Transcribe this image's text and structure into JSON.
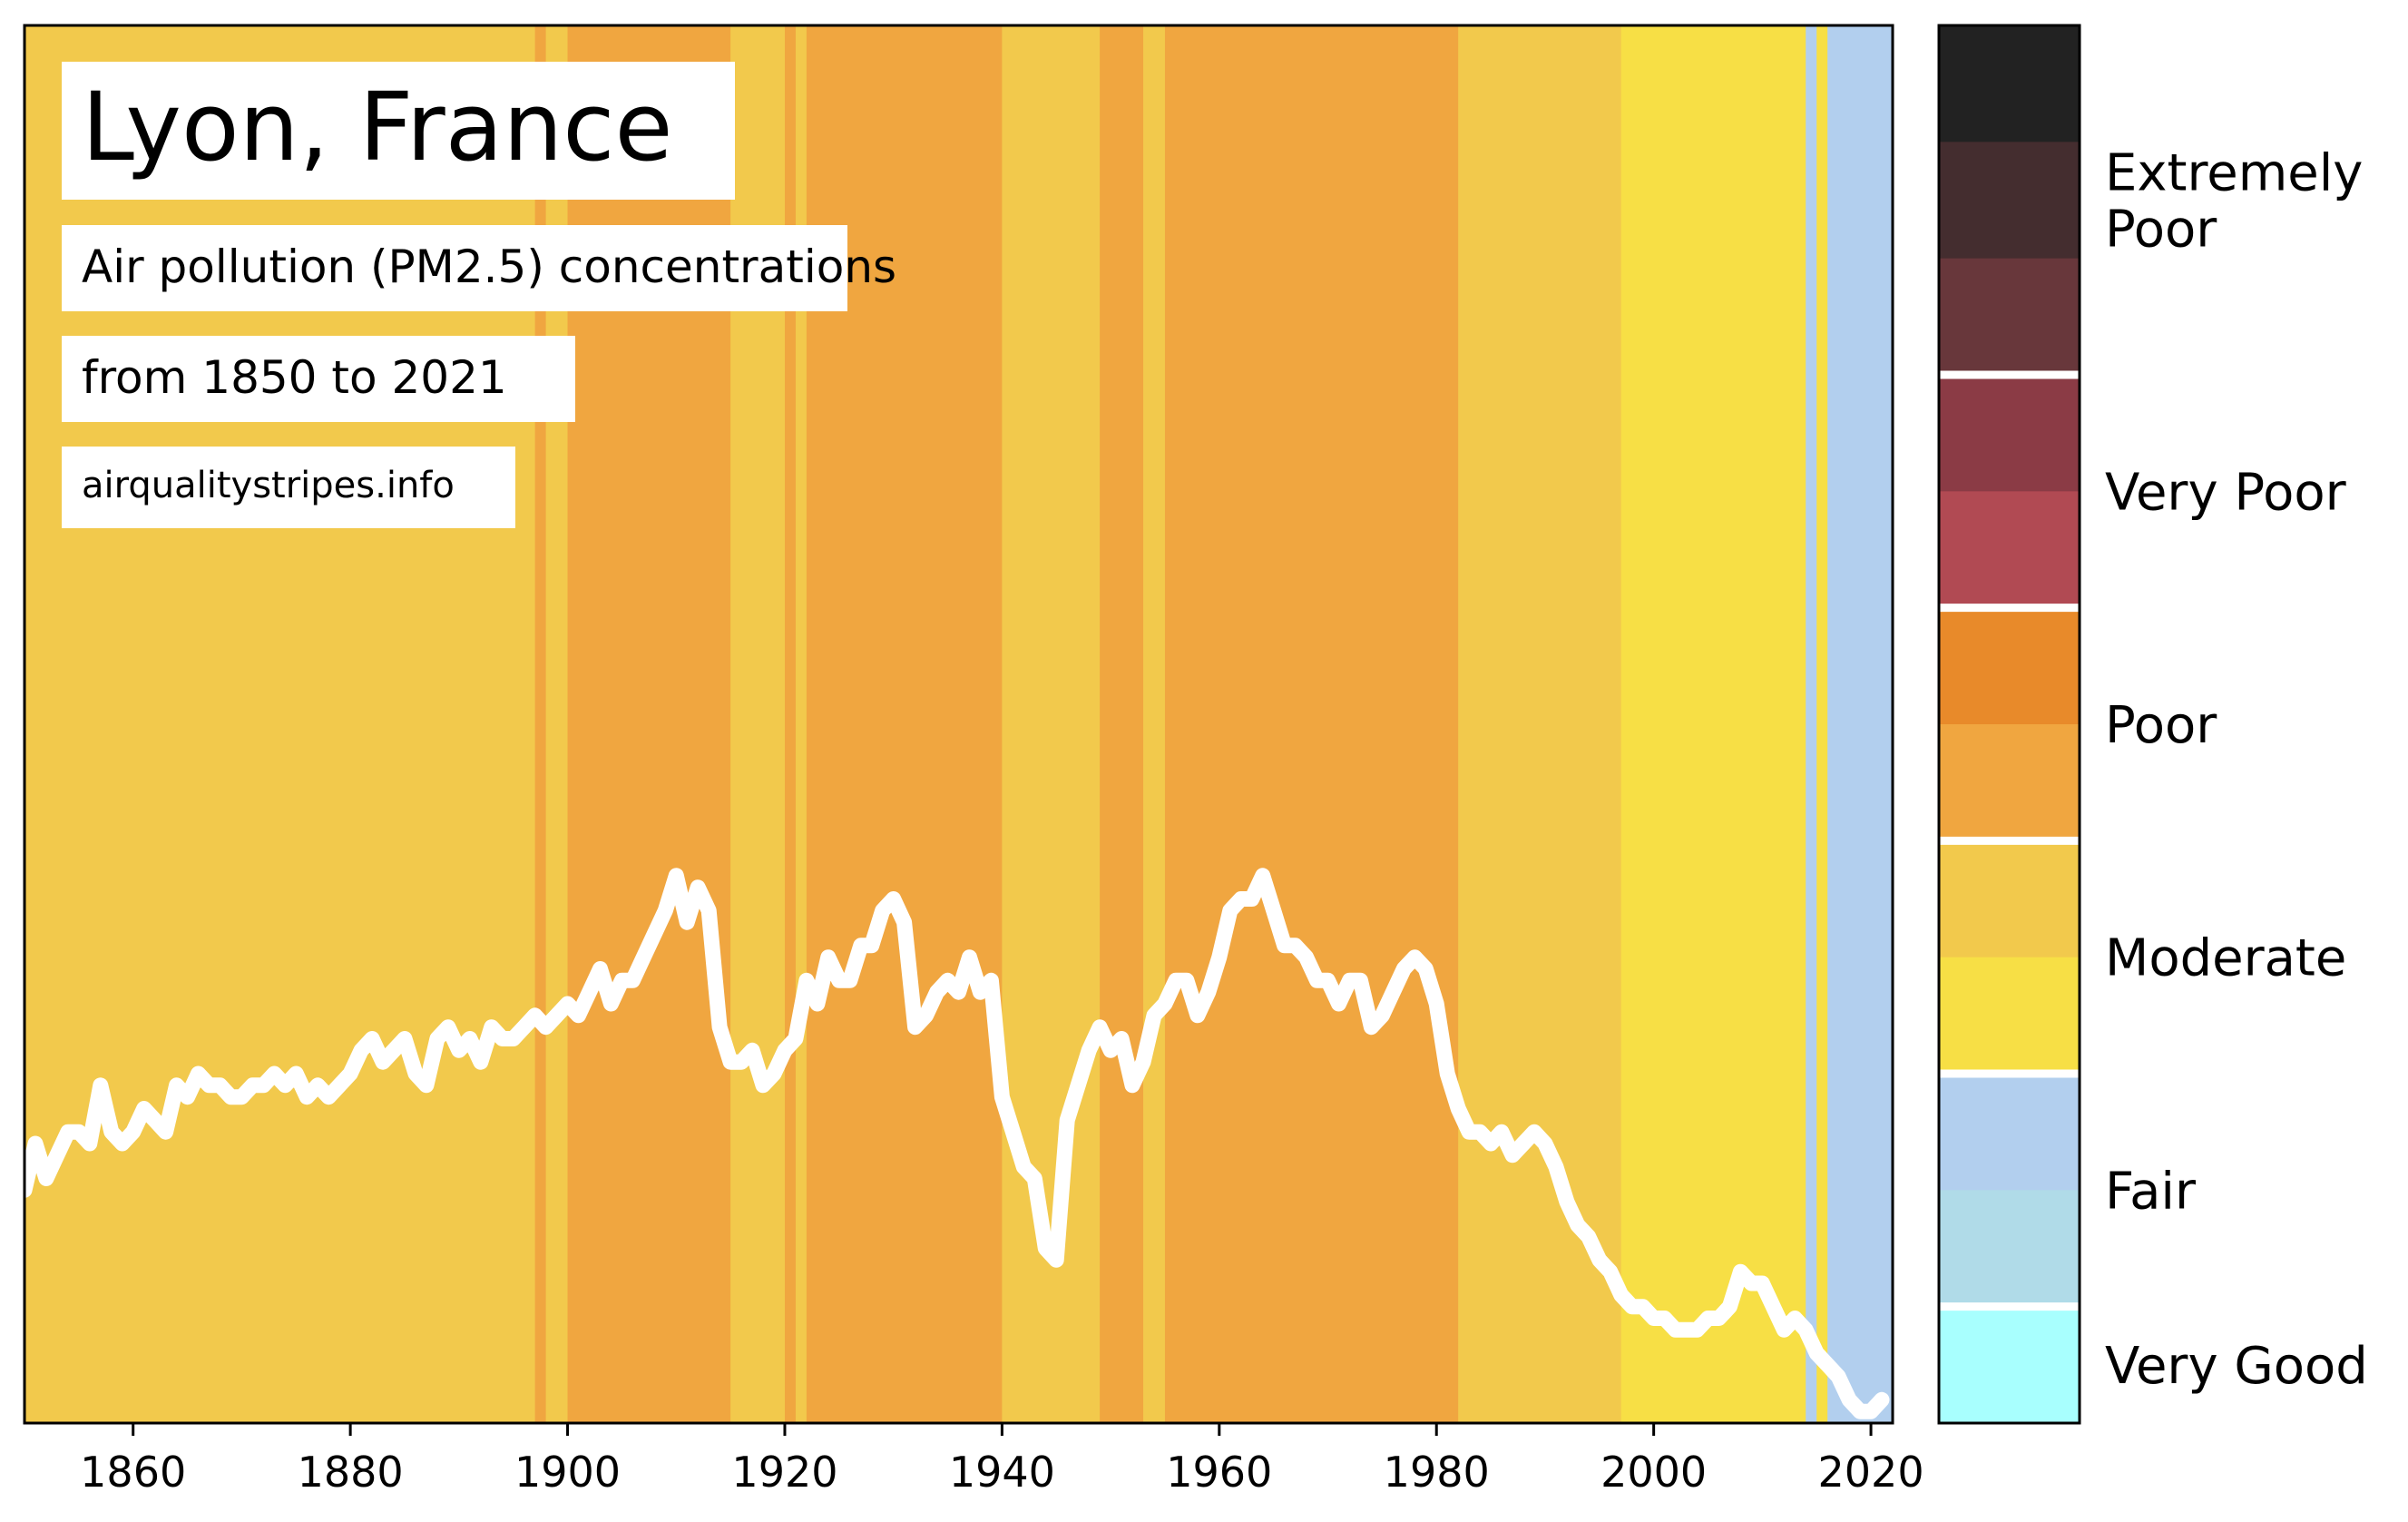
{
  "chart_data": {
    "type": "line",
    "title": "Lyon, France",
    "subtitle_lines": [
      "Air pollution (PM2.5) concentrations",
      "from 1850 to 2021"
    ],
    "source": "airqualitystripes.info",
    "xlabel": "",
    "ylabel": "",
    "xlim": [
      1850,
      2022
    ],
    "ylim": [
      0,
      120
    ],
    "x_ticks": [
      1860,
      1880,
      1900,
      1920,
      1940,
      1960,
      1980,
      2000,
      2020
    ],
    "line_color": "#ffffff",
    "stripes": [
      {
        "start": 1850,
        "end": 1897,
        "category": "Moderate"
      },
      {
        "start": 1897,
        "end": 1898,
        "category": "Poor"
      },
      {
        "start": 1898,
        "end": 1900,
        "category": "Moderate"
      },
      {
        "start": 1900,
        "end": 1915,
        "category": "Poor"
      },
      {
        "start": 1915,
        "end": 1920,
        "category": "Moderate"
      },
      {
        "start": 1920,
        "end": 1921,
        "category": "Poor"
      },
      {
        "start": 1921,
        "end": 1922,
        "category": "Moderate"
      },
      {
        "start": 1922,
        "end": 1940,
        "category": "Poor"
      },
      {
        "start": 1940,
        "end": 1949,
        "category": "Moderate"
      },
      {
        "start": 1949,
        "end": 1953,
        "category": "Poor"
      },
      {
        "start": 1953,
        "end": 1955,
        "category": "Moderate"
      },
      {
        "start": 1955,
        "end": 1982,
        "category": "Poor"
      },
      {
        "start": 1982,
        "end": 1997,
        "category": "Moderate"
      },
      {
        "start": 1997,
        "end": 2014,
        "category": "Moderate-low"
      },
      {
        "start": 2014,
        "end": 2015,
        "category": "Fair"
      },
      {
        "start": 2015,
        "end": 2016,
        "category": "Moderate-low"
      },
      {
        "start": 2016,
        "end": 2022,
        "category": "Fair"
      }
    ],
    "stripe_colors": {
      "Moderate": "#f2c94c",
      "Moderate-low": "#f7df45",
      "Poor": "#f0a640",
      "Fair": "#b2cfee"
    },
    "series": [
      {
        "x": [
          1850,
          1851,
          1852,
          1853,
          1854,
          1855,
          1856,
          1857,
          1858,
          1859,
          1860,
          1861,
          1862,
          1863,
          1864,
          1865,
          1866,
          1867,
          1868,
          1869,
          1870,
          1871,
          1872,
          1873,
          1874,
          1875,
          1876,
          1877,
          1878,
          1879,
          1880,
          1881,
          1882,
          1883,
          1884,
          1885,
          1886,
          1887,
          1888,
          1889,
          1890,
          1891,
          1892,
          1893,
          1894,
          1895,
          1896,
          1897,
          1898,
          1899,
          1900,
          1901,
          1902,
          1903,
          1904,
          1905,
          1906,
          1907,
          1908,
          1909,
          1910,
          1911,
          1912,
          1913,
          1914,
          1915,
          1916,
          1917,
          1918,
          1919,
          1920,
          1921,
          1922,
          1923,
          1924,
          1925,
          1926,
          1927,
          1928,
          1929,
          1930,
          1931,
          1932,
          1933,
          1934,
          1935,
          1936,
          1937,
          1938,
          1939,
          1940,
          1941,
          1942,
          1943,
          1944,
          1945,
          1946,
          1947,
          1948,
          1949,
          1950,
          1951,
          1952,
          1953,
          1954,
          1955,
          1956,
          1957,
          1958,
          1959,
          1960,
          1961,
          1962,
          1963,
          1964,
          1965,
          1966,
          1967,
          1968,
          1969,
          1970,
          1971,
          1972,
          1973,
          1974,
          1975,
          1976,
          1977,
          1978,
          1979,
          1980,
          1981,
          1982,
          1983,
          1984,
          1985,
          1986,
          1987,
          1988,
          1989,
          1990,
          1991,
          1992,
          1993,
          1994,
          1995,
          1996,
          1997,
          1998,
          1999,
          2000,
          2001,
          2002,
          2003,
          2004,
          2005,
          2006,
          2007,
          2008,
          2009,
          2010,
          2011,
          2012,
          2013,
          2014,
          2015,
          2016,
          2017,
          2018,
          2019,
          2020,
          2021
        ],
        "values": [
          20,
          24,
          21,
          23,
          25,
          25,
          24,
          29,
          25,
          24,
          25,
          27,
          26,
          25,
          29,
          28,
          30,
          29,
          29,
          28,
          28,
          29,
          29,
          30,
          29,
          30,
          28,
          29,
          28,
          29,
          30,
          32,
          33,
          31,
          32,
          33,
          30,
          29,
          33,
          34,
          32,
          33,
          31,
          34,
          33,
          33,
          34,
          35,
          34,
          35,
          36,
          35,
          37,
          39,
          36,
          38,
          38,
          40,
          42,
          44,
          47,
          43,
          46,
          44,
          34,
          31,
          31,
          32,
          29,
          30,
          32,
          33,
          38,
          36,
          40,
          38,
          38,
          41,
          41,
          44,
          45,
          43,
          34,
          35,
          37,
          38,
          37,
          40,
          37,
          38,
          28,
          25,
          22,
          21,
          15,
          14,
          26,
          29,
          32,
          34,
          32,
          33,
          29,
          31,
          35,
          36,
          38,
          38,
          35,
          37,
          40,
          44,
          45,
          45,
          47,
          44,
          41,
          41,
          40,
          38,
          38,
          36,
          38,
          38,
          34,
          35,
          37,
          39,
          40,
          39,
          36,
          30,
          27,
          25,
          25,
          24,
          25,
          23,
          24,
          25,
          24,
          22,
          19,
          17,
          16,
          14,
          13,
          11,
          10,
          10,
          9,
          9,
          8,
          8,
          8,
          9,
          9,
          10,
          13,
          12,
          12,
          10,
          8,
          9,
          8,
          6,
          5,
          4,
          2,
          1,
          1,
          2
        ]
      }
    ],
    "legend": {
      "colors_top_to_bottom": [
        "#222222",
        "#442d2f",
        "#68373b",
        "#8b3b45",
        "#b14a53",
        "#e88a2a",
        "#f0a640",
        "#f2c94c",
        "#f7df45",
        "#b2cfee",
        "#b0dbe8",
        "#a8fffe"
      ],
      "labels": [
        {
          "lines": [
            "Extremely",
            "Poor"
          ]
        },
        {
          "lines": [
            "Very Poor"
          ]
        },
        {
          "lines": [
            "Poor"
          ]
        },
        {
          "lines": [
            "Moderate"
          ]
        },
        {
          "lines": [
            "Fair"
          ]
        },
        {
          "lines": [
            "Very Good"
          ]
        }
      ]
    }
  }
}
